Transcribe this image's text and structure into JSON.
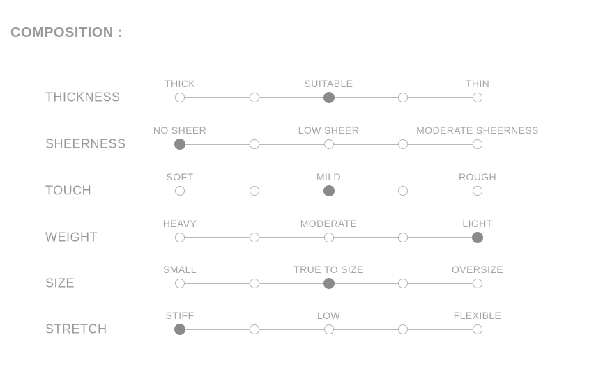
{
  "header": {
    "title": "COMPOSITION :"
  },
  "colors": {
    "text": "#999999",
    "label": "#a5a5a5",
    "line": "#b8b8b8",
    "dot_border": "#b3b3b3",
    "dot_fill": "#8a8a8a",
    "background": "#ffffff"
  },
  "chart_data": {
    "type": "table",
    "title": "COMPOSITION :",
    "scale_points": 5,
    "rows": [
      {
        "attribute": "THICKNESS",
        "scale_labels": [
          "THICK",
          "SUITABLE",
          "THIN"
        ],
        "points": 5,
        "selected_point": 3
      },
      {
        "attribute": "SHEERNESS",
        "scale_labels": [
          "NO SHEER",
          "LOW SHEER",
          "MODERATE SHEERNESS"
        ],
        "points": 5,
        "selected_point": 1
      },
      {
        "attribute": "TOUCH",
        "scale_labels": [
          "SOFT",
          "MILD",
          "ROUGH"
        ],
        "points": 5,
        "selected_point": 3
      },
      {
        "attribute": "WEIGHT",
        "scale_labels": [
          "HEAVY",
          "MODERATE",
          "LIGHT"
        ],
        "points": 5,
        "selected_point": 5
      },
      {
        "attribute": "SIZE",
        "scale_labels": [
          "SMALL",
          "TRUE TO SIZE",
          "OVERSIZE"
        ],
        "points": 5,
        "selected_point": 3
      },
      {
        "attribute": "STRETCH",
        "scale_labels": [
          "STIFF",
          "LOW",
          "FLEXIBLE"
        ],
        "points": 5,
        "selected_point": 1
      }
    ]
  }
}
